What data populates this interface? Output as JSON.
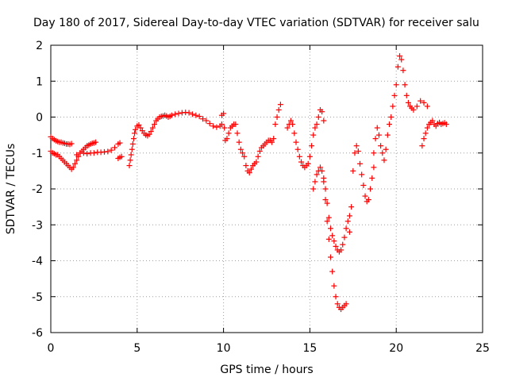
{
  "chart_data": {
    "type": "scatter",
    "title": "Day 180 of 2017, Sidereal Day-to-day VTEC variation (SDTVAR) for receiver salu",
    "xlabel": "GPS time / hours",
    "ylabel": "SDTVAR / TECUs",
    "xlim": [
      0,
      25
    ],
    "ylim": [
      -6,
      2
    ],
    "xticks": [
      "0",
      "5",
      "10",
      "15",
      "20",
      "25"
    ],
    "yticks": [
      "-6",
      "-5",
      "-4",
      "-3",
      "-2",
      "-1",
      "0",
      "1",
      "2"
    ],
    "grid": true,
    "marker": "plus",
    "color": "#ff0000",
    "series": [
      {
        "x": [
          0.0,
          0.1,
          0.2,
          0.3,
          0.4,
          0.5,
          0.6,
          0.7,
          0.8,
          0.9,
          1.0,
          1.1,
          1.2
        ],
        "y": [
          -0.55,
          -0.6,
          -0.63,
          -0.66,
          -0.68,
          -0.7,
          -0.7,
          -0.72,
          -0.73,
          -0.75,
          -0.75,
          -0.76,
          -0.74
        ]
      },
      {
        "x": [
          0.0,
          0.1,
          0.2,
          0.3,
          0.4,
          0.5,
          0.6,
          0.7,
          0.8,
          0.9,
          1.0,
          1.1,
          1.2,
          1.3,
          1.4,
          1.5,
          1.6,
          1.7,
          1.8,
          1.9,
          2.0,
          2.1,
          2.2,
          2.3,
          2.4,
          2.5,
          2.6
        ],
        "y": [
          -0.95,
          -1.0,
          -1.02,
          -1.05,
          -1.05,
          -1.1,
          -1.15,
          -1.2,
          -1.25,
          -1.3,
          -1.35,
          -1.4,
          -1.45,
          -1.4,
          -1.3,
          -1.2,
          -1.1,
          -1.0,
          -0.95,
          -0.9,
          -0.85,
          -0.8,
          -0.78,
          -0.75,
          -0.73,
          -0.72,
          -0.7
        ]
      },
      {
        "x": [
          1.5,
          1.7,
          1.9,
          2.1,
          2.3,
          2.5,
          2.7,
          2.9,
          3.1,
          3.3,
          3.5,
          3.7,
          3.9,
          4.0
        ],
        "y": [
          -1.05,
          -1.0,
          -1.0,
          -1.02,
          -1.0,
          -1.0,
          -0.98,
          -0.98,
          -0.97,
          -0.96,
          -0.92,
          -0.85,
          -0.75,
          -0.72
        ]
      },
      {
        "x": [
          3.9,
          4.0,
          4.1
        ],
        "y": [
          -1.15,
          -1.12,
          -1.1
        ]
      },
      {
        "x": [
          4.55,
          4.6,
          4.65,
          4.7,
          4.75,
          4.8,
          4.85,
          4.9,
          5.0,
          5.1,
          5.2,
          5.3,
          5.4,
          5.5,
          5.6,
          5.7,
          5.8,
          5.9,
          6.0,
          6.1,
          6.2,
          6.3,
          6.4,
          6.5,
          6.6,
          6.7,
          6.8,
          6.9,
          7.0,
          7.2,
          7.4,
          7.6,
          7.8,
          8.0,
          8.2,
          8.4,
          8.6,
          8.8,
          9.0,
          9.2,
          9.4,
          9.6,
          9.8,
          9.9
        ],
        "y": [
          -1.35,
          -1.2,
          -1.05,
          -0.9,
          -0.75,
          -0.6,
          -0.45,
          -0.35,
          -0.25,
          -0.22,
          -0.3,
          -0.38,
          -0.45,
          -0.5,
          -0.52,
          -0.48,
          -0.4,
          -0.3,
          -0.2,
          -0.1,
          -0.05,
          0.0,
          0.02,
          0.03,
          0.05,
          0.03,
          0.0,
          0.02,
          0.05,
          0.08,
          0.1,
          0.12,
          0.13,
          0.12,
          0.08,
          0.05,
          0.02,
          -0.05,
          -0.1,
          -0.18,
          -0.25,
          -0.28,
          -0.25,
          -0.2
        ]
      },
      {
        "x": [
          9.9,
          10.0,
          10.05,
          10.1,
          10.2,
          10.3,
          10.4,
          10.5,
          10.6,
          10.7,
          10.8,
          10.9,
          11.0,
          11.1,
          11.2,
          11.3,
          11.4,
          11.5,
          11.6,
          11.7,
          11.8,
          11.9,
          12.0,
          12.1,
          12.2,
          12.3,
          12.4,
          12.5,
          12.6,
          12.7,
          12.8,
          12.9,
          13.0,
          13.1,
          13.2,
          13.3
        ],
        "y": [
          0.05,
          0.1,
          -0.3,
          -0.65,
          -0.6,
          -0.45,
          -0.3,
          -0.25,
          -0.2,
          -0.2,
          -0.45,
          -0.7,
          -0.9,
          -1.0,
          -1.1,
          -1.35,
          -1.5,
          -1.55,
          -1.45,
          -1.35,
          -1.3,
          -1.25,
          -1.1,
          -0.95,
          -0.85,
          -0.8,
          -0.75,
          -0.7,
          -0.65,
          -0.65,
          -0.7,
          -0.6,
          -0.2,
          0.0,
          0.2,
          0.35
        ]
      },
      {
        "x": [
          13.7,
          13.8,
          13.9,
          14.0,
          14.1,
          14.2,
          14.3,
          14.4,
          14.5,
          14.6,
          14.7,
          14.8,
          14.9,
          15.0,
          15.1,
          15.2,
          15.3,
          15.4,
          15.5,
          15.6,
          15.7,
          15.8
        ],
        "y": [
          -0.3,
          -0.2,
          -0.1,
          -0.2,
          -0.45,
          -0.7,
          -0.9,
          -1.1,
          -1.25,
          -1.35,
          -1.4,
          -1.35,
          -1.3,
          -1.1,
          -0.8,
          -0.5,
          -0.3,
          -0.2,
          0.0,
          0.2,
          0.15,
          -0.1
        ]
      },
      {
        "x": [
          15.2,
          15.3,
          15.4,
          15.5,
          15.6,
          15.7,
          15.8,
          15.9,
          16.0,
          16.1,
          16.2,
          16.3,
          16.4,
          16.5,
          16.6,
          16.7,
          16.8,
          16.9,
          17.0,
          17.1,
          17.2,
          17.3
        ],
        "y": [
          -2.0,
          -1.8,
          -1.6,
          -1.5,
          -1.4,
          -1.5,
          -1.7,
          -2.0,
          -2.4,
          -2.8,
          -3.1,
          -3.3,
          -3.45,
          -3.6,
          -3.7,
          -3.75,
          -3.7,
          -3.55,
          -3.35,
          -3.1,
          -2.9,
          -2.75
        ]
      },
      {
        "x": [
          15.8,
          15.9,
          16.0,
          16.1,
          16.2,
          16.3,
          16.4,
          16.5,
          16.6,
          16.7,
          16.8,
          16.9,
          17.0,
          17.1
        ],
        "y": [
          -1.8,
          -2.3,
          -2.9,
          -3.4,
          -3.9,
          -4.3,
          -4.7,
          -5.0,
          -5.2,
          -5.3,
          -5.35,
          -5.3,
          -5.25,
          -5.2
        ]
      },
      {
        "x": [
          17.3,
          17.4,
          17.5,
          17.6,
          17.7,
          17.8,
          17.9,
          18.0,
          18.1,
          18.2,
          18.3,
          18.4,
          18.5,
          18.6,
          18.7
        ],
        "y": [
          -3.2,
          -2.5,
          -1.5,
          -1.0,
          -0.8,
          -0.95,
          -1.3,
          -1.6,
          -1.9,
          -2.2,
          -2.35,
          -2.3,
          -2.0,
          -1.7,
          -1.4
        ]
      },
      {
        "x": [
          18.7,
          18.8,
          18.9,
          19.0,
          19.1,
          19.2,
          19.3,
          19.4,
          19.5,
          19.6,
          19.7,
          19.8,
          19.9,
          20.0,
          20.1,
          20.2,
          20.3,
          20.4,
          20.5,
          20.6,
          20.7,
          20.8,
          20.9,
          21.0,
          21.2,
          21.4,
          21.6,
          21.8
        ],
        "y": [
          -1.0,
          -0.6,
          -0.3,
          -0.5,
          -0.8,
          -1.0,
          -1.2,
          -0.9,
          -0.5,
          -0.2,
          0.0,
          0.3,
          0.6,
          0.9,
          1.4,
          1.7,
          1.6,
          1.3,
          0.9,
          0.6,
          0.4,
          0.3,
          0.25,
          0.2,
          0.3,
          0.45,
          0.4,
          0.3
        ]
      },
      {
        "x": [
          21.5,
          21.6,
          21.7,
          21.8,
          21.9,
          22.0,
          22.1,
          22.2,
          22.3,
          22.4,
          22.5,
          22.6,
          22.7,
          22.8,
          22.9
        ],
        "y": [
          -0.8,
          -0.6,
          -0.45,
          -0.3,
          -0.2,
          -0.15,
          -0.1,
          -0.2,
          -0.25,
          -0.18,
          -0.15,
          -0.2,
          -0.18,
          -0.16,
          -0.2
        ]
      }
    ]
  }
}
